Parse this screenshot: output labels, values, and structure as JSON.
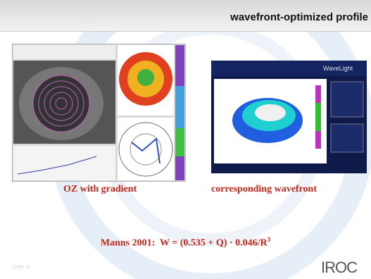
{
  "header": {
    "title": "wavefront-optimized profile"
  },
  "images": {
    "left_caption": "OZ with gradient",
    "right_caption": "corresponding wavefront",
    "right_brand": "WaveLight"
  },
  "formula": {
    "text": "Manns 2001:  W = (0.535 + Q) · 0.046/R",
    "superscript": "3"
  },
  "footer": {
    "page_label": "Seite 11",
    "logo": "IROC"
  }
}
